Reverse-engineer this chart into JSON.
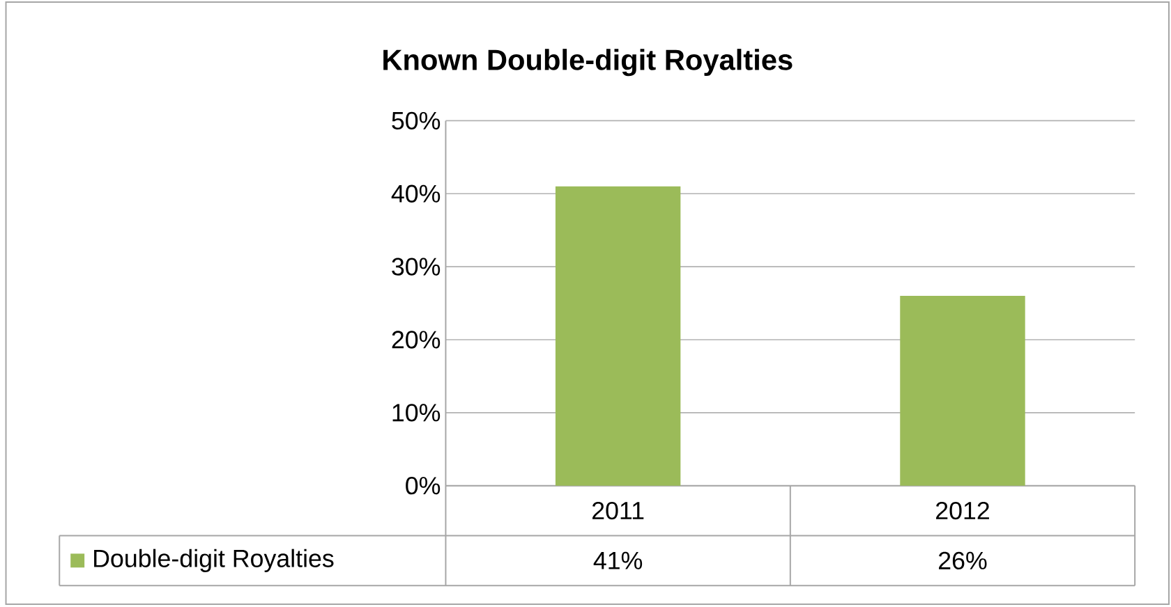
{
  "chart_data": {
    "type": "bar",
    "title": "Known Double-digit Royalties",
    "categories": [
      "2011",
      "2012"
    ],
    "series": [
      {
        "name": "Double-digit Royalties",
        "color": "#9bbb59",
        "values": [
          41,
          26
        ],
        "value_labels": [
          "41%",
          "26%"
        ]
      }
    ],
    "ylim": [
      0,
      50
    ],
    "yticks": [
      {
        "value": 0,
        "label": "0%"
      },
      {
        "value": 10,
        "label": "10%"
      },
      {
        "value": 20,
        "label": "20%"
      },
      {
        "value": 30,
        "label": "30%"
      },
      {
        "value": 40,
        "label": "40%"
      },
      {
        "value": 50,
        "label": "50%"
      }
    ],
    "grid": "y",
    "legend": "bottom"
  }
}
